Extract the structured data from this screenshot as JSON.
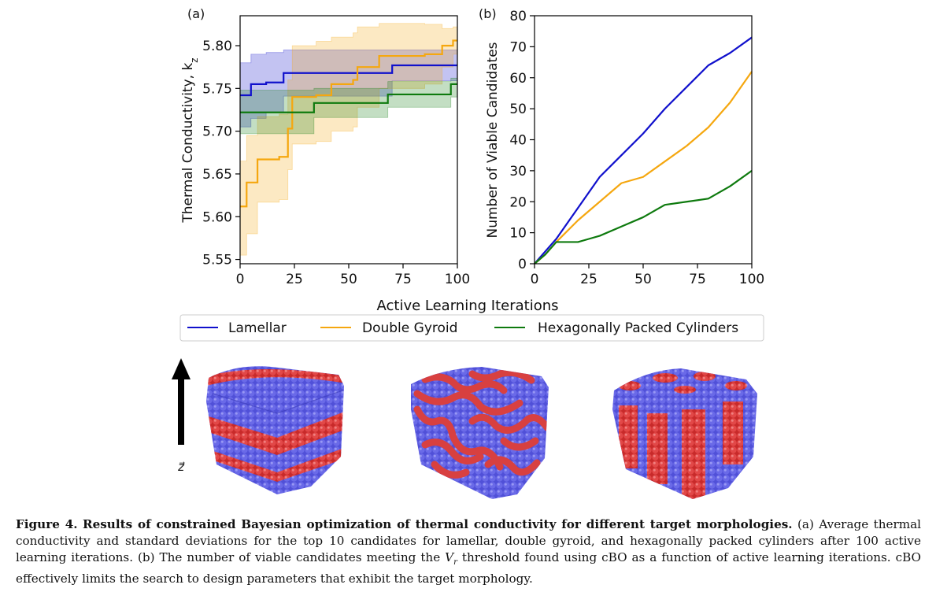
{
  "figure": {
    "panel_a_label": "(a)",
    "panel_b_label": "(b)",
    "shared_xlabel": "Active Learning Iterations",
    "axis_arrow_label": "z⃗",
    "morphology_images": [
      "lamellar-icon",
      "double-gyroid-icon",
      "hexagonal-cylinders-icon"
    ]
  },
  "legend": {
    "placement": "below",
    "entries": [
      {
        "label": "Lamellar",
        "color": "#1010cc"
      },
      {
        "label": "Double Gyroid",
        "color": "#f5a70f"
      },
      {
        "label": "Hexagonally Packed Cylinders",
        "color": "#0e7a0e"
      }
    ]
  },
  "caption": {
    "label": "Figure 4.",
    "title": "Results of constrained Bayesian optimization of thermal conductivity for different target morphologies.",
    "text_a": "(a) Average thermal conductivity and standard deviations for the top 10 candidates for lamellar, double gyroid, and hexagonally packed cylinders after 100 active learning iterations. (b) The number of viable candidates meeting the ",
    "vr_base": "V",
    "vr_sub": "r",
    "text_b": " threshold found using cBO as a function of active learning iterations. cBO effectively limits the search to design parameters that exhibit the target morphology."
  },
  "chart_data": [
    {
      "type": "line",
      "panel": "(a)",
      "ylabel": "Thermal Conductivity, k",
      "ylabel_sub": "z",
      "xlim": [
        0,
        100
      ],
      "ylim": [
        5.545,
        5.835
      ],
      "xticks": [
        0,
        25,
        50,
        75,
        100
      ],
      "yticks": [
        5.55,
        5.6,
        5.65,
        5.7,
        5.75,
        5.8
      ],
      "ytick_labels": [
        "5.55",
        "5.60",
        "5.65",
        "5.70",
        "5.75",
        "5.80"
      ],
      "grid": false,
      "series": [
        {
          "name": "Lamellar",
          "color": "#1010cc",
          "x": [
            0,
            5,
            12,
            20,
            70,
            100
          ],
          "y": [
            5.742,
            5.755,
            5.757,
            5.768,
            5.777,
            5.777
          ],
          "upper": [
            5.78,
            5.79,
            5.792,
            5.795,
            5.795,
            5.795
          ],
          "lower": [
            5.705,
            5.715,
            5.722,
            5.741,
            5.759,
            5.759
          ]
        },
        {
          "name": "Double Gyroid",
          "color": "#f5a70f",
          "x": [
            0,
            3,
            8,
            18,
            22,
            24,
            35,
            42,
            52,
            54,
            64,
            85,
            93,
            98,
            100
          ],
          "y": [
            5.612,
            5.64,
            5.667,
            5.67,
            5.703,
            5.74,
            5.742,
            5.755,
            5.76,
            5.775,
            5.788,
            5.79,
            5.8,
            5.806,
            5.806
          ],
          "upper": [
            5.665,
            5.695,
            5.717,
            5.72,
            5.76,
            5.8,
            5.805,
            5.81,
            5.815,
            5.822,
            5.826,
            5.825,
            5.82,
            5.822,
            5.822
          ],
          "lower": [
            5.555,
            5.58,
            5.617,
            5.62,
            5.655,
            5.685,
            5.688,
            5.7,
            5.705,
            5.728,
            5.75,
            5.755,
            5.775,
            5.79,
            5.79
          ]
        },
        {
          "name": "Hexagonally Packed Cylinders",
          "color": "#0e7a0e",
          "x": [
            0,
            34,
            68,
            97,
            100
          ],
          "y": [
            5.722,
            5.733,
            5.743,
            5.755,
            5.755
          ],
          "upper": [
            5.748,
            5.75,
            5.758,
            5.762,
            5.762
          ],
          "lower": [
            5.697,
            5.716,
            5.728,
            5.74,
            5.74
          ]
        }
      ]
    },
    {
      "type": "line",
      "panel": "(b)",
      "ylabel": "Number of Viable Candidates",
      "xlim": [
        0,
        100
      ],
      "ylim": [
        0,
        80
      ],
      "xticks": [
        0,
        25,
        50,
        75,
        100
      ],
      "yticks": [
        0,
        10,
        20,
        30,
        40,
        50,
        60,
        70,
        80
      ],
      "grid": false,
      "series": [
        {
          "name": "Lamellar",
          "color": "#1010cc",
          "x": [
            0,
            5,
            10,
            20,
            30,
            40,
            50,
            60,
            70,
            80,
            90,
            100
          ],
          "y": [
            0,
            4,
            8,
            18,
            28,
            35,
            42,
            50,
            57,
            64,
            68,
            73
          ]
        },
        {
          "name": "Double Gyroid",
          "color": "#f5a70f",
          "x": [
            0,
            5,
            10,
            20,
            30,
            40,
            50,
            60,
            70,
            80,
            90,
            100
          ],
          "y": [
            0,
            3,
            7,
            14,
            20,
            26,
            28,
            33,
            38,
            44,
            52,
            62
          ]
        },
        {
          "name": "Hexagonally Packed Cylinders",
          "color": "#0e7a0e",
          "x": [
            0,
            5,
            10,
            20,
            25,
            30,
            40,
            50,
            60,
            70,
            80,
            90,
            100
          ],
          "y": [
            0,
            3,
            7,
            7,
            8,
            9,
            12,
            15,
            19,
            20,
            21,
            25,
            30
          ]
        }
      ]
    }
  ]
}
